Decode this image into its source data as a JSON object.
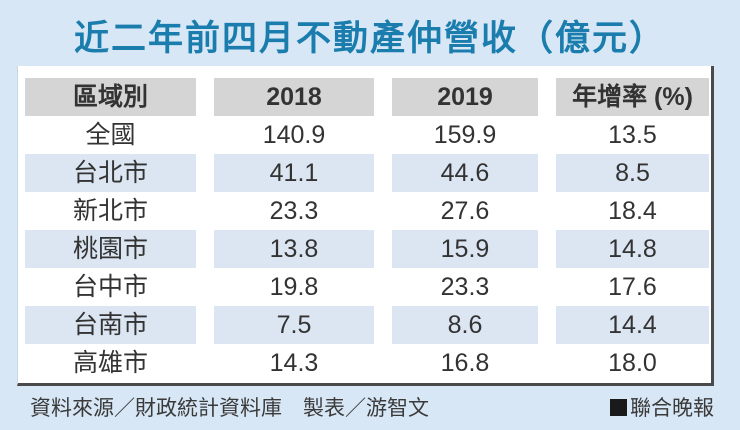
{
  "page": {
    "title": "近二年前四月不動產仲營收（億元）"
  },
  "table": {
    "headers": {
      "region": "區域別",
      "y2018": "2018",
      "y2019": "2019",
      "growth": "年增率 (%)"
    },
    "rows": [
      {
        "region": "全國",
        "y2018": "140.9",
        "y2019": "159.9",
        "growth": "13.5"
      },
      {
        "region": "台北市",
        "y2018": "41.1",
        "y2019": "44.6",
        "growth": "8.5"
      },
      {
        "region": "新北市",
        "y2018": "23.3",
        "y2019": "27.6",
        "growth": "18.4"
      },
      {
        "region": "桃園市",
        "y2018": "13.8",
        "y2019": "15.9",
        "growth": "14.8"
      },
      {
        "region": "台中市",
        "y2018": "19.8",
        "y2019": "23.3",
        "growth": "17.6"
      },
      {
        "region": "台南市",
        "y2018": "7.5",
        "y2019": "8.6",
        "growth": "14.4"
      },
      {
        "region": "高雄市",
        "y2018": "14.3",
        "y2019": "16.8",
        "growth": "18.0"
      }
    ]
  },
  "footer": {
    "source_credit": "資料來源／財政統計資料庫　製表／游智文",
    "brand": "聯合晚報",
    "brand_icon": "black-square-icon"
  },
  "colors": {
    "page_bg": "#d8e7f6",
    "title_text": "#1b7dad",
    "header_bg": "#d5d5d6",
    "stripe_bg": "#dce6f2",
    "table_bg": "#ffffff",
    "body_text": "#333333",
    "border": "#4a4a4a"
  },
  "chart_data": {
    "type": "table",
    "title": "近二年前四月不動產仲營收（億元）",
    "unit": "億元",
    "columns": [
      "區域別",
      "2018",
      "2019",
      "年增率 (%)"
    ],
    "rows": [
      [
        "全國",
        140.9,
        159.9,
        13.5
      ],
      [
        "台北市",
        41.1,
        44.6,
        8.5
      ],
      [
        "新北市",
        23.3,
        27.6,
        18.4
      ],
      [
        "桃園市",
        13.8,
        15.9,
        14.8
      ],
      [
        "台中市",
        19.8,
        23.3,
        17.6
      ],
      [
        "台南市",
        7.5,
        8.6,
        14.4
      ],
      [
        "高雄市",
        14.3,
        16.8,
        18.0
      ]
    ],
    "source": "財政統計資料庫",
    "table_credit": "游智文",
    "publisher": "聯合晚報",
    "layout": {
      "striped_rows": [
        1,
        3,
        5
      ],
      "header_background": "#d5d5d6",
      "stripe_background": "#dce6f2"
    }
  }
}
